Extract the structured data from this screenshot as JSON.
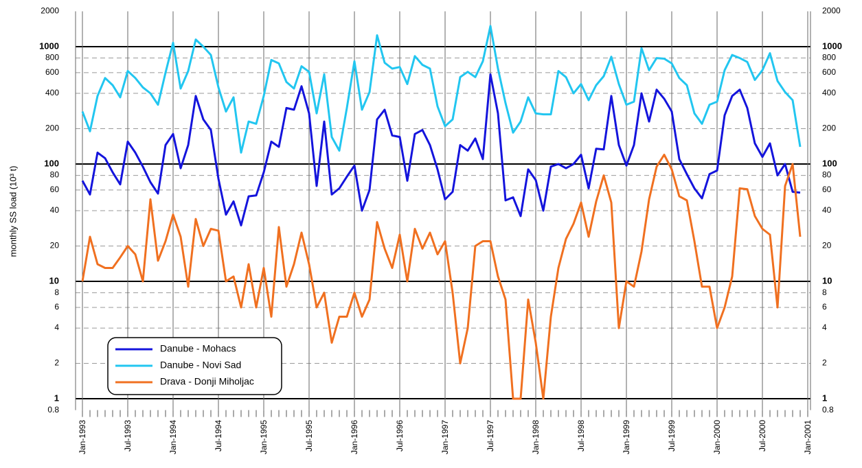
{
  "chart_data": {
    "type": "line",
    "y_label": "monthly SS load (10³ t)",
    "log_scale": true,
    "grid": true,
    "legend_position": "lower-left",
    "ylim": [
      0.8,
      2000
    ],
    "yticks": [
      0.8,
      1,
      2,
      4,
      6,
      8,
      10,
      20,
      40,
      60,
      80,
      100,
      200,
      400,
      600,
      800,
      1000,
      2000
    ],
    "categories": [
      "Jan-1993",
      null,
      null,
      null,
      null,
      null,
      "Jul-1993",
      null,
      null,
      null,
      null,
      null,
      "Jan-1994",
      null,
      null,
      null,
      null,
      null,
      "Jul-1994",
      null,
      null,
      null,
      null,
      null,
      "Jan-1995",
      null,
      null,
      null,
      null,
      null,
      "Jul-1995",
      null,
      null,
      null,
      null,
      null,
      "Jan-1996",
      null,
      null,
      null,
      null,
      null,
      "Jul-1996",
      null,
      null,
      null,
      null,
      null,
      "Jan-1997",
      null,
      null,
      null,
      null,
      null,
      "Jul-1997",
      null,
      null,
      null,
      null,
      null,
      "Jan-1998",
      null,
      null,
      null,
      null,
      null,
      "Jul-1998",
      null,
      null,
      null,
      null,
      null,
      "Jan-1999",
      null,
      null,
      null,
      null,
      null,
      "Jul-1999",
      null,
      null,
      null,
      null,
      null,
      "Jan-2000",
      null,
      null,
      null,
      null,
      null,
      "Jul-2000",
      null,
      null,
      null,
      null,
      null,
      "Jan-2001"
    ],
    "series": [
      {
        "name": "Danube - Mohacs",
        "color": "#1414dc",
        "values": [
          72,
          55,
          125,
          112,
          85,
          67,
          155,
          125,
          95,
          70,
          56,
          145,
          180,
          92,
          145,
          380,
          240,
          195,
          75,
          37,
          48,
          30,
          53,
          54,
          85,
          155,
          140,
          300,
          290,
          460,
          270,
          65,
          230,
          55,
          62,
          78,
          97,
          40,
          60,
          240,
          290,
          175,
          170,
          72,
          180,
          195,
          145,
          90,
          50,
          58,
          145,
          130,
          165,
          110,
          580,
          270,
          49,
          52,
          36,
          90,
          73,
          40,
          95,
          100,
          92,
          100,
          120,
          62,
          135,
          133,
          380,
          145,
          97,
          145,
          400,
          230,
          430,
          360,
          280,
          110,
          82,
          62,
          51,
          82,
          88,
          260,
          380,
          430,
          300,
          150,
          115,
          150,
          80,
          100,
          58,
          57,
          null
        ]
      },
      {
        "name": "Danube - Novi Sad",
        "color": "#22c6f0",
        "values": [
          280,
          190,
          380,
          540,
          470,
          370,
          620,
          540,
          450,
          400,
          320,
          600,
          1080,
          440,
          620,
          1150,
          1000,
          850,
          450,
          280,
          370,
          125,
          230,
          220,
          380,
          770,
          720,
          500,
          440,
          680,
          610,
          270,
          580,
          170,
          130,
          300,
          750,
          290,
          410,
          1250,
          730,
          650,
          670,
          480,
          830,
          700,
          650,
          310,
          210,
          240,
          550,
          610,
          550,
          750,
          1500,
          650,
          330,
          185,
          230,
          370,
          270,
          265,
          265,
          620,
          550,
          400,
          480,
          350,
          470,
          560,
          820,
          480,
          320,
          340,
          970,
          630,
          800,
          790,
          720,
          540,
          470,
          270,
          220,
          320,
          340,
          630,
          850,
          800,
          740,
          520,
          630,
          880,
          510,
          410,
          350,
          140,
          null
        ]
      },
      {
        "name": "Drava - Donji Miholjac",
        "color": "#f07020",
        "values": [
          10,
          24,
          14,
          13,
          13,
          16,
          20,
          17,
          10,
          50,
          15,
          22,
          37,
          24,
          9,
          34,
          20,
          28,
          27,
          10,
          11,
          6,
          14,
          6,
          13,
          5,
          29,
          9,
          14,
          26,
          14,
          6,
          8,
          3,
          5,
          5,
          8,
          5,
          7,
          32,
          19,
          13,
          25,
          10,
          28,
          19,
          26,
          17,
          22,
          8,
          2,
          4,
          20,
          22,
          22,
          11,
          7,
          1,
          1,
          7,
          3,
          1,
          5,
          13,
          23,
          31,
          47,
          24,
          48,
          80,
          47,
          4,
          10,
          9,
          18,
          50,
          95,
          120,
          90,
          53,
          49,
          22,
          9,
          9,
          4,
          6,
          11,
          62,
          61,
          36,
          28,
          25,
          6,
          65,
          100,
          24,
          null
        ]
      }
    ]
  }
}
